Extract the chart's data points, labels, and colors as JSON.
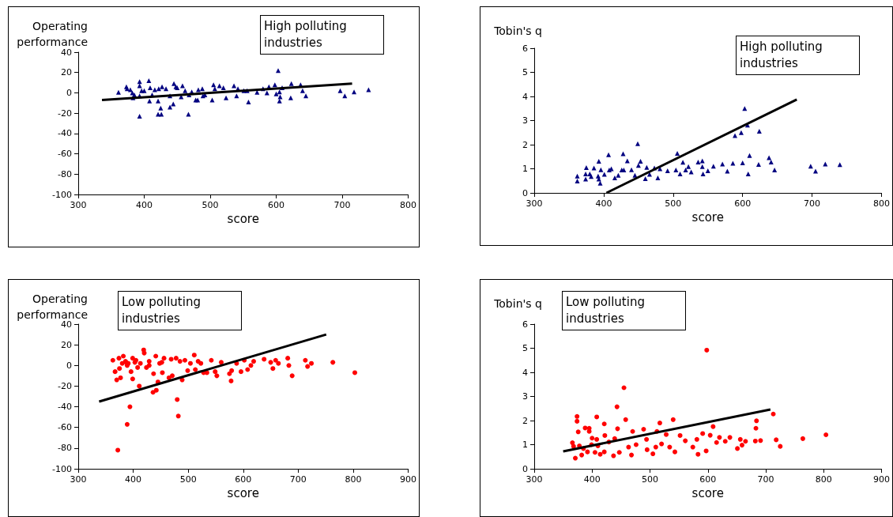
{
  "chart_data": [
    {
      "type": "scatter",
      "ylabel": "Operating performance",
      "xlabel": "score",
      "annotations": [
        "High polluting industries"
      ],
      "xlim": [
        300,
        800
      ],
      "xticks": [
        300,
        400,
        500,
        600,
        700,
        800
      ],
      "ylim": [
        -100,
        40
      ],
      "yticks": [
        -100,
        -80,
        -60,
        -40,
        -20,
        0,
        20,
        40
      ],
      "grid": false,
      "marker": "triangle",
      "series": [
        {
          "color": "#000080",
          "x": [
            361,
            373,
            374,
            379,
            382,
            385,
            383,
            393,
            393,
            393,
            393,
            396,
            400,
            407,
            409,
            408,
            412,
            416,
            421,
            425,
            421,
            426,
            422,
            427,
            433,
            439,
            439,
            444,
            445,
            448,
            450,
            456,
            458,
            462,
            467,
            468,
            472,
            478,
            481,
            482,
            488,
            489,
            492,
            503,
            505,
            507,
            514,
            520,
            524,
            536,
            540,
            542,
            551,
            556,
            558,
            571,
            580,
            586,
            589,
            598,
            600,
            603,
            605,
            605,
            606,
            609,
            623,
            622,
            637,
            640,
            645,
            697,
            704,
            718,
            740
          ],
          "values": [
            0.5,
            6,
            4,
            3,
            0,
            -2,
            -5,
            11,
            7,
            -3,
            -23,
            2,
            2,
            12,
            5,
            -8,
            -2,
            3,
            -8,
            -15,
            -21,
            -21,
            4,
            6,
            4,
            -3,
            -14,
            -11,
            9,
            6,
            5,
            -4,
            7,
            2,
            -21,
            -2,
            1,
            -7,
            -7,
            3,
            4,
            -3,
            -2,
            -7,
            8,
            4,
            7,
            5,
            -5,
            7,
            -3,
            4,
            2,
            2,
            -9,
            0.5,
            4,
            0,
            6,
            8,
            -1,
            22,
            1,
            -8,
            -4,
            5,
            9,
            -5,
            8,
            2,
            -3,
            2,
            -3,
            1,
            3
          ]
        },
        {
          "type": "line",
          "color": "#000000",
          "marker": "none",
          "x": [
            336,
            715
          ],
          "values": [
            -7,
            9
          ]
        }
      ]
    },
    {
      "type": "scatter",
      "ylabel": "Tobin's q",
      "xlabel": "score",
      "annotations": [
        "High polluting industries"
      ],
      "xlim": [
        300,
        800
      ],
      "xticks": [
        300,
        400,
        500,
        600,
        700,
        800
      ],
      "ylim": [
        0,
        6
      ],
      "yticks": [
        0,
        1,
        2,
        3,
        4,
        5,
        6
      ],
      "grid": false,
      "marker": "triangle",
      "series": [
        {
          "color": "#000080",
          "x": [
            362,
            362,
            375,
            374,
            374,
            380,
            382,
            386,
            392,
            393,
            393,
            395,
            396,
            401,
            407,
            408,
            411,
            416,
            421,
            426,
            428,
            429,
            434,
            440,
            445,
            449,
            450,
            453,
            462,
            460,
            466,
            473,
            478,
            481,
            492,
            506,
            504,
            510,
            514,
            518,
            522,
            526,
            536,
            542,
            542,
            543,
            550,
            558,
            571,
            578,
            586,
            589,
            598,
            600,
            603,
            607,
            608,
            610,
            623,
            624,
            638,
            641,
            646,
            698,
            705,
            719,
            740
          ],
          "values": [
            0.7,
            0.49,
            1.05,
            0.79,
            0.57,
            0.79,
            0.68,
            1.03,
            0.7,
            1.31,
            0.57,
            0.4,
            0.96,
            0.77,
            1.58,
            0.95,
            1,
            0.62,
            0.73,
            0.95,
            1.62,
            0.95,
            1.33,
            0.96,
            0.73,
            2.04,
            1.14,
            1.31,
            1.06,
            0.59,
            0.77,
            1.03,
            0.62,
            1,
            0.92,
            1.64,
            0.95,
            0.79,
            1.27,
            0.95,
            1.09,
            0.87,
            1.28,
            1.33,
            1.09,
            0.79,
            0.92,
            1.11,
            1.2,
            0.9,
            1.23,
            2.38,
            2.5,
            1.25,
            3.5,
            2.81,
            0.79,
            1.55,
            1.18,
            2.56,
            1.46,
            1.28,
            0.95,
            1.11,
            0.9,
            1.2,
            1.17
          ]
        },
        {
          "type": "line",
          "color": "#000000",
          "marker": "none",
          "x": [
            404,
            678
          ],
          "values": [
            0,
            3.87
          ]
        }
      ]
    },
    {
      "type": "scatter",
      "ylabel": "Operating performance",
      "xlabel": "score",
      "annotations": [
        "Low polluting industries"
      ],
      "xlim": [
        300,
        900
      ],
      "xticks": [
        300,
        400,
        500,
        600,
        700,
        800,
        900
      ],
      "ylim": [
        -100,
        40
      ],
      "yticks": [
        -100,
        -80,
        -60,
        -40,
        -20,
        0,
        20,
        40
      ],
      "grid": false,
      "marker": "circle",
      "series": [
        {
          "color": "#ff0000",
          "x": [
            363,
            367,
            370,
            372,
            374,
            375,
            377,
            382,
            386,
            389,
            389,
            394,
            396,
            399,
            399,
            405,
            408,
            411,
            419,
            420,
            424,
            429,
            436,
            437,
            441,
            442,
            445,
            448,
            453,
            456,
            465,
            469,
            471,
            478,
            480,
            482,
            489,
            494,
            499,
            511,
            513,
            518,
            528,
            534,
            542,
            549,
            552,
            560,
            575,
            578,
            579,
            588,
            596,
            602,
            608,
            614,
            619,
            638,
            650,
            654,
            659,
            664,
            681,
            683,
            689,
            713,
            717,
            724,
            763,
            803,
            380,
            387,
            391,
            403,
            413,
            429,
            452,
            485,
            504,
            523
          ],
          "values": [
            5,
            -6,
            -14,
            -82,
            7,
            -3,
            -12,
            9,
            4,
            0,
            -57,
            -40,
            -6,
            7,
            -13,
            5,
            -2,
            -20,
            15,
            12,
            -2,
            4,
            -26,
            -8,
            9,
            -24,
            -16,
            2,
            -7,
            7,
            -12,
            6,
            -10,
            7,
            -33,
            -49,
            -14,
            5,
            -5,
            10,
            -4,
            4,
            -7,
            -7,
            5,
            -6,
            -10,
            3,
            -8,
            -15,
            -5,
            2,
            -6,
            5,
            -4,
            0,
            4,
            6,
            3,
            -3,
            5,
            2,
            7,
            0,
            -10,
            5,
            -1,
            2,
            3,
            -7,
            2,
            3,
            2,
            3,
            2,
            0,
            3,
            4,
            2,
            2
          ]
        },
        {
          "type": "line",
          "color": "#000000",
          "marker": "none",
          "x": [
            338,
            751
          ],
          "values": [
            -35,
            30
          ]
        }
      ]
    },
    {
      "type": "scatter",
      "ylabel": "Tobin's q",
      "xlabel": "score",
      "annotations": [
        "Low polluting industries"
      ],
      "xlim": [
        300,
        900
      ],
      "xticks": [
        300,
        400,
        500,
        600,
        700,
        800,
        900
      ],
      "ylim": [
        0,
        6
      ],
      "yticks": [
        0,
        1,
        2,
        3,
        4,
        5,
        6
      ],
      "grid": false,
      "marker": "circle",
      "series": [
        {
          "color": "#ff0000",
          "x": [
            371,
            366,
            368,
            374,
            374,
            376,
            378,
            382,
            385,
            388,
            392,
            395,
            395,
            399,
            400,
            405,
            408,
            408,
            410,
            414,
            421,
            422,
            421,
            429,
            437,
            439,
            443,
            444,
            447,
            455,
            458,
            463,
            468,
            470,
            476,
            489,
            494,
            495,
            505,
            510,
            512,
            517,
            520,
            528,
            534,
            540,
            543,
            552,
            561,
            574,
            581,
            583,
            591,
            597,
            598,
            604,
            609,
            615,
            620,
            630,
            638,
            651,
            656,
            659,
            665,
            682,
            683,
            684,
            691,
            713,
            718,
            725,
            764,
            804
          ],
          "values": [
            0.44,
            1.08,
            0.93,
            2.17,
            1.97,
            1.53,
            0.95,
            0.57,
            0.84,
            1.69,
            0.7,
            1.55,
            1.68,
            1,
            1.27,
            0.68,
            2.15,
            1.22,
            0.95,
            0.6,
            1.86,
            1.38,
            0.7,
            1.11,
            0.54,
            1.25,
            2.57,
            1.66,
            0.68,
            3.36,
            2.04,
            0.9,
            0.57,
            1.55,
            1,
            1.64,
            1.22,
            0.79,
            0.62,
            0.9,
            1.55,
            1.9,
            1.03,
            1.42,
            0.9,
            2.04,
            0.7,
            1.38,
            1.16,
            0.9,
            1.22,
            0.6,
            1.46,
            0.74,
            4.92,
            1.39,
            1.75,
            1.09,
            1.3,
            1.14,
            1.3,
            0.84,
            1.22,
            0.98,
            1.14,
            1.15,
            1.68,
            1.99,
            1.17,
            2.27,
            1.2,
            0.93,
            1.25,
            1.41
          ]
        },
        {
          "type": "line",
          "color": "#000000",
          "marker": "none",
          "x": [
            350,
            708
          ],
          "values": [
            0.72,
            2.46
          ]
        }
      ]
    }
  ]
}
